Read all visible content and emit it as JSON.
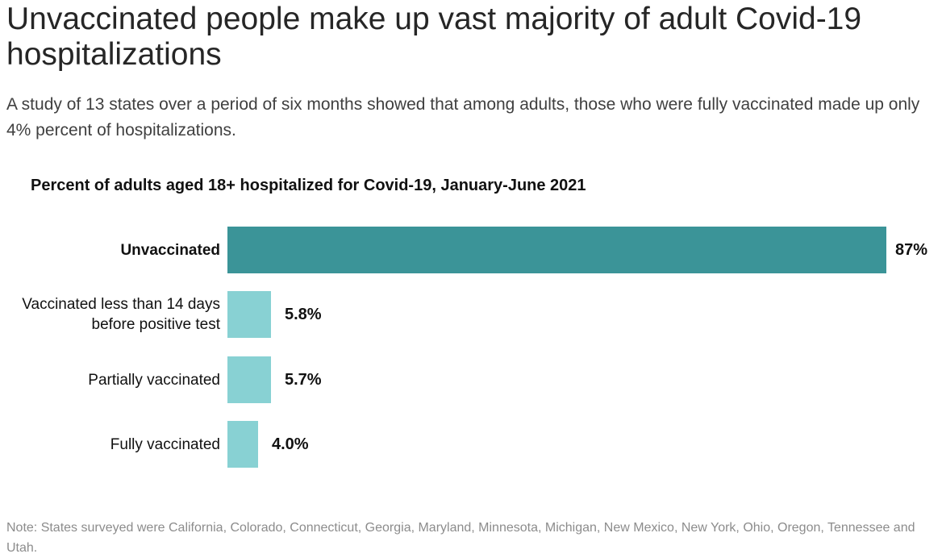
{
  "headline": "Unvaccinated people make up vast majority of adult Covid-19 hospitalizations",
  "subhead": "A study of 13 states over a period of six months showed that among adults, those who were fully vaccinated made up only 4% percent of hospitalizations.",
  "note": "Note: States surveyed were California, Colorado, Connecticut, Georgia, Maryland, Minnesota, Michigan, New Mexico, New York, Ohio, Oregon, Tennessee and Utah.",
  "colors": {
    "primary_bar": "#3b9498",
    "secondary_bar": "#88d1d3"
  },
  "chart_data": {
    "type": "bar",
    "orientation": "horizontal",
    "title": "Percent of adults aged 18+ hospitalized for Covid-19, January-June 2021",
    "xlabel": "",
    "ylabel": "",
    "xlim": [
      0,
      87
    ],
    "grid": false,
    "categories": [
      "Unvaccinated",
      "Vaccinated less than 14 days before positive test",
      "Partially vaccinated",
      "Fully vaccinated"
    ],
    "values": [
      87,
      5.8,
      5.7,
      4.0
    ],
    "value_labels": [
      "87%",
      "5.8%",
      "5.7%",
      "4.0%"
    ]
  }
}
